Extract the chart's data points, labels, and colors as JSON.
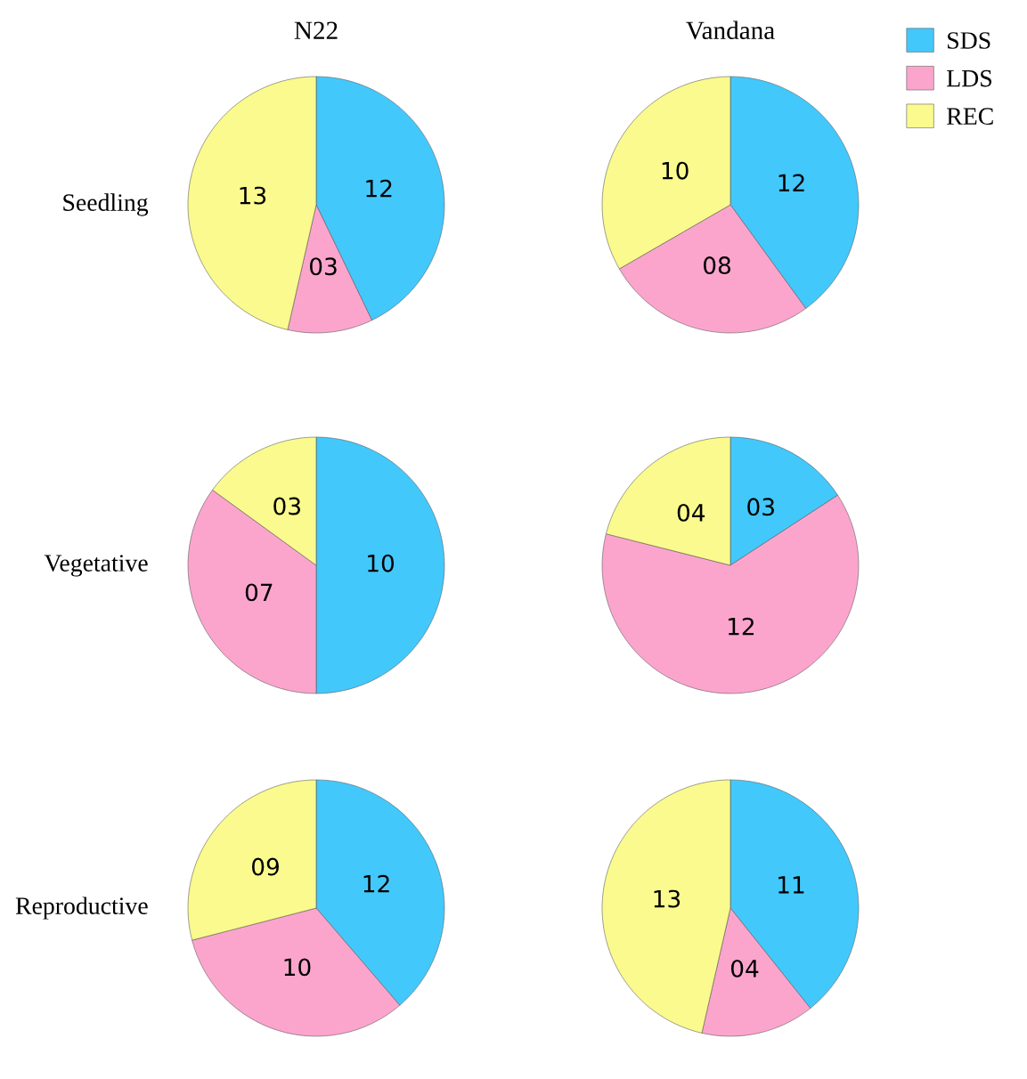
{
  "chart_data": [
    {
      "type": "pie",
      "title": "N22",
      "ylabel": "Seedling",
      "categories": [
        null,
        null,
        null
      ],
      "values": [
        12,
        3,
        13
      ],
      "value_labels": [
        "12",
        "03",
        "13"
      ],
      "colors": [
        "#43c8fb",
        "#fba5cd",
        "#fafa8e"
      ]
    },
    {
      "type": "pie",
      "title": "Vandana",
      "categories": [
        "SDS",
        "LDS",
        "REC"
      ],
      "values": [
        12,
        8,
        10
      ],
      "value_labels": [
        "12",
        "08",
        "10"
      ],
      "colors": [
        "#43c8fb",
        "#fba5cd",
        "#fafa8e"
      ],
      "legend": "top right"
    },
    {
      "type": "pie",
      "ylabel": "Vegetative",
      "categories": [
        null,
        null,
        null
      ],
      "values": [
        10,
        7,
        3
      ],
      "value_labels": [
        "10",
        "07",
        "03"
      ],
      "colors": [
        "#43c8fb",
        "#fba5cd",
        "#fafa8e"
      ]
    },
    {
      "type": "pie",
      "categories": [
        null,
        null,
        null
      ],
      "values": [
        3,
        12,
        4
      ],
      "value_labels": [
        "03",
        "12",
        "04"
      ],
      "colors": [
        "#43c8fb",
        "#fba5cd",
        "#fafa8e"
      ]
    },
    {
      "type": "pie",
      "ylabel": "Reproductive",
      "categories": [
        null,
        null,
        null
      ],
      "values": [
        12,
        10,
        9
      ],
      "value_labels": [
        "12",
        "10",
        "09"
      ],
      "colors": [
        "#43c8fb",
        "#fba5cd",
        "#fafa8e"
      ]
    },
    {
      "type": "pie",
      "categories": [
        null,
        null,
        null
      ],
      "values": [
        11,
        4,
        13
      ],
      "value_labels": [
        "11",
        "04",
        "13"
      ],
      "colors": [
        "#43c8fb",
        "#fba5cd",
        "#fafa8e"
      ]
    }
  ]
}
